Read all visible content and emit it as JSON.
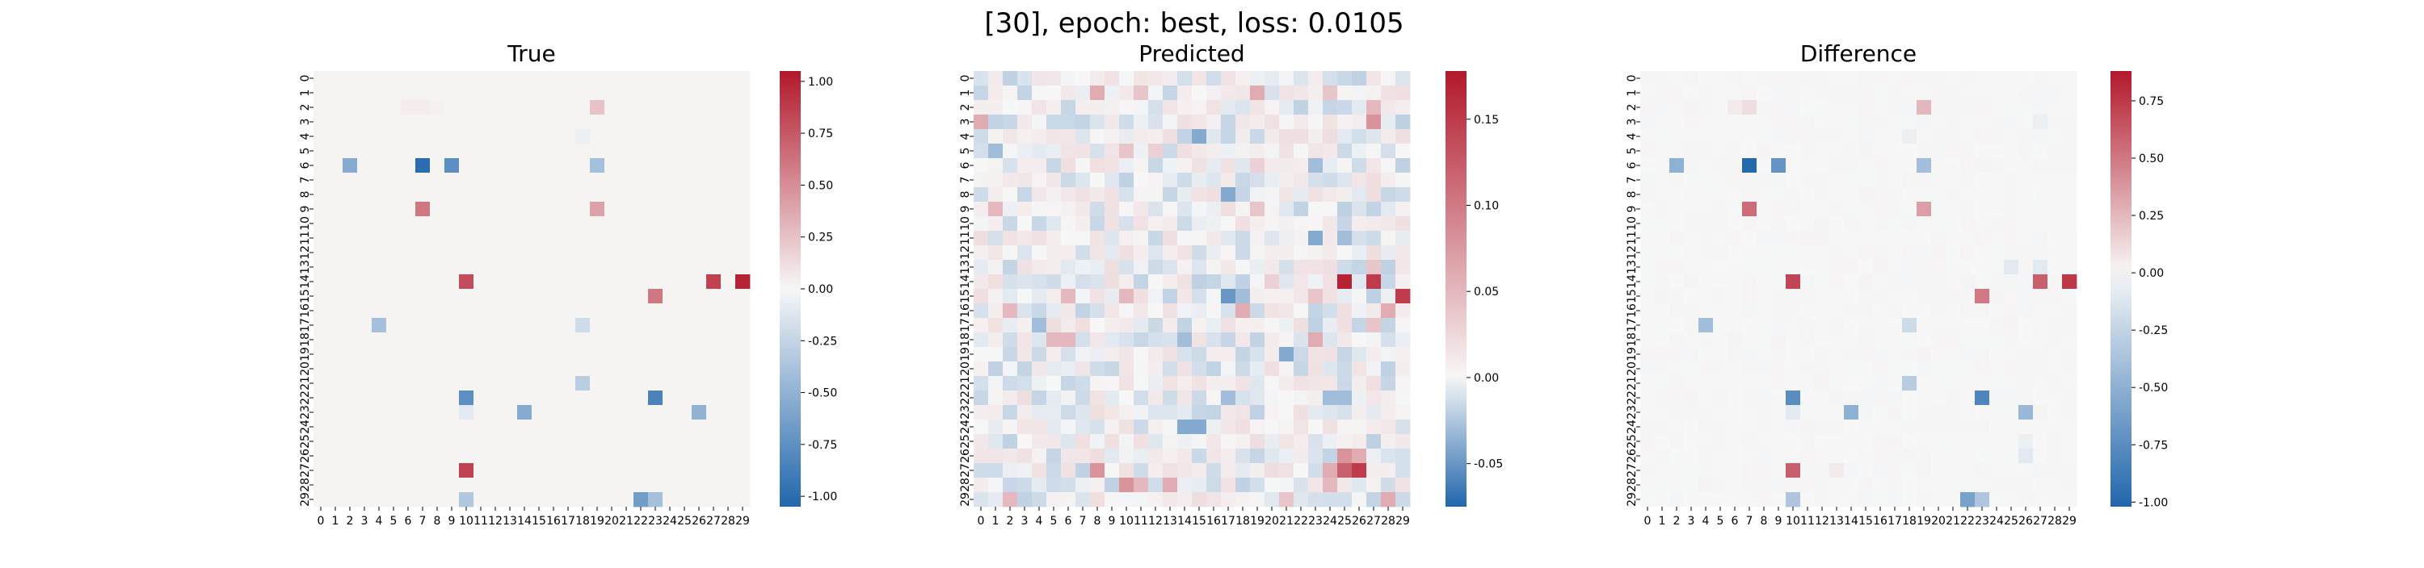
{
  "figure": {
    "suptitle": "[30], epoch: best, loss: 0.0105"
  },
  "colors": {
    "cmap": [
      "#2166ac",
      "#f7f7f7",
      "#b2182b"
    ],
    "background": "#ffffff"
  },
  "chart_data": [
    {
      "type": "heatmap",
      "title": "True",
      "rows": 30,
      "cols": 30,
      "x_tick_labels": [
        "0",
        "1",
        "2",
        "3",
        "4",
        "5",
        "6",
        "7",
        "8",
        "9",
        "10",
        "11",
        "12",
        "13",
        "14",
        "15",
        "16",
        "17",
        "18",
        "19",
        "20",
        "21",
        "22",
        "23",
        "24",
        "25",
        "26",
        "27",
        "28",
        "29"
      ],
      "y_tick_labels": [
        "0",
        "1",
        "2",
        "3",
        "4",
        "5",
        "6",
        "7",
        "8",
        "9",
        "10",
        "11",
        "12",
        "13",
        "14",
        "15",
        "16",
        "17",
        "18",
        "19",
        "20",
        "21",
        "22",
        "23",
        "24",
        "25",
        "26",
        "27",
        "28",
        "29"
      ],
      "vmin": -1.05,
      "vmax": 1.05,
      "colorbar_ticks": [
        "-1.00",
        "-0.75",
        "-0.50",
        "-0.25",
        "0.00",
        "0.25",
        "0.50",
        "0.75",
        "1.00"
      ],
      "colorbar_tick_values": [
        -1.0,
        -0.75,
        -0.5,
        -0.25,
        0.0,
        0.25,
        0.5,
        0.75,
        1.0
      ],
      "background_value": 0.02,
      "cells": [
        [
          2,
          6,
          0.05
        ],
        [
          2,
          7,
          0.05
        ],
        [
          2,
          8,
          0.03
        ],
        [
          2,
          19,
          0.25
        ],
        [
          4,
          18,
          -0.05
        ],
        [
          6,
          2,
          -0.55
        ],
        [
          6,
          7,
          -1.0
        ],
        [
          6,
          9,
          -0.75
        ],
        [
          6,
          19,
          -0.4
        ],
        [
          9,
          7,
          0.6
        ],
        [
          9,
          19,
          0.4
        ],
        [
          14,
          10,
          0.8
        ],
        [
          14,
          27,
          0.85
        ],
        [
          14,
          29,
          1.0
        ],
        [
          15,
          23,
          0.6
        ],
        [
          17,
          4,
          -0.4
        ],
        [
          17,
          18,
          -0.2
        ],
        [
          21,
          18,
          -0.3
        ],
        [
          22,
          10,
          -0.75
        ],
        [
          22,
          23,
          -0.85
        ],
        [
          23,
          10,
          -0.1
        ],
        [
          23,
          14,
          -0.55
        ],
        [
          23,
          26,
          -0.5
        ],
        [
          27,
          10,
          0.85
        ],
        [
          29,
          10,
          -0.35
        ],
        [
          29,
          22,
          -0.65
        ],
        [
          29,
          23,
          -0.4
        ]
      ]
    },
    {
      "type": "heatmap",
      "title": "Predicted",
      "rows": 30,
      "cols": 30,
      "x_tick_labels": [
        "0",
        "1",
        "2",
        "3",
        "4",
        "5",
        "6",
        "7",
        "8",
        "9",
        "10",
        "11",
        "12",
        "13",
        "14",
        "15",
        "16",
        "17",
        "18",
        "19",
        "20",
        "21",
        "22",
        "23",
        "24",
        "25",
        "26",
        "27",
        "28",
        "29"
      ],
      "y_tick_labels": [
        "0",
        "1",
        "2",
        "3",
        "4",
        "5",
        "6",
        "7",
        "8",
        "9",
        "10",
        "11",
        "12",
        "13",
        "14",
        "15",
        "16",
        "17",
        "18",
        "19",
        "20",
        "21",
        "22",
        "23",
        "24",
        "25",
        "26",
        "27",
        "28",
        "29"
      ],
      "vmin": -0.075,
      "vmax": 0.178,
      "colorbar_ticks": [
        "-0.05",
        "0.00",
        "0.05",
        "0.10",
        "0.15"
      ],
      "colorbar_tick_values": [
        -0.05,
        0.0,
        0.05,
        0.1,
        0.15
      ],
      "background_noise": 0.02,
      "cells": [
        [
          1,
          8,
          0.06
        ],
        [
          1,
          11,
          0.04
        ],
        [
          1,
          19,
          0.06
        ],
        [
          1,
          24,
          0.04
        ],
        [
          2,
          27,
          0.05
        ],
        [
          3,
          0,
          0.06
        ],
        [
          3,
          27,
          0.08
        ],
        [
          3,
          29,
          -0.02
        ],
        [
          4,
          15,
          -0.04
        ],
        [
          5,
          1,
          -0.03
        ],
        [
          5,
          10,
          0.04
        ],
        [
          5,
          12,
          0.03
        ],
        [
          6,
          19,
          0.03
        ],
        [
          6,
          23,
          -0.03
        ],
        [
          8,
          17,
          -0.04
        ],
        [
          9,
          1,
          0.05
        ],
        [
          9,
          19,
          0.04
        ],
        [
          11,
          23,
          -0.04
        ],
        [
          11,
          25,
          -0.03
        ],
        [
          13,
          27,
          0.04
        ],
        [
          14,
          25,
          0.17
        ],
        [
          14,
          27,
          0.15
        ],
        [
          14,
          20,
          0.03
        ],
        [
          15,
          6,
          0.05
        ],
        [
          15,
          10,
          0.05
        ],
        [
          15,
          17,
          -0.05
        ],
        [
          15,
          18,
          -0.03
        ],
        [
          15,
          23,
          0.04
        ],
        [
          15,
          27,
          -0.02
        ],
        [
          15,
          29,
          0.15
        ],
        [
          16,
          2,
          0.05
        ],
        [
          16,
          18,
          0.06
        ],
        [
          16,
          28,
          0.06
        ],
        [
          17,
          4,
          -0.03
        ],
        [
          17,
          27,
          0.04
        ],
        [
          18,
          5,
          0.05
        ],
        [
          18,
          6,
          0.05
        ],
        [
          18,
          14,
          -0.03
        ],
        [
          18,
          23,
          0.06
        ],
        [
          19,
          21,
          -0.04
        ],
        [
          22,
          17,
          -0.03
        ],
        [
          22,
          24,
          -0.03
        ],
        [
          22,
          25,
          -0.03
        ],
        [
          24,
          14,
          -0.04
        ],
        [
          24,
          15,
          -0.04
        ],
        [
          26,
          25,
          0.08
        ],
        [
          26,
          26,
          0.06
        ],
        [
          27,
          8,
          0.08
        ],
        [
          27,
          24,
          0.06
        ],
        [
          27,
          25,
          0.12
        ],
        [
          27,
          26,
          0.15
        ],
        [
          28,
          10,
          0.08
        ],
        [
          28,
          11,
          0.05
        ],
        [
          28,
          13,
          0.06
        ],
        [
          28,
          24,
          0.05
        ],
        [
          29,
          2,
          0.05
        ],
        [
          29,
          21,
          0.04
        ],
        [
          29,
          28,
          0.06
        ]
      ]
    },
    {
      "type": "heatmap",
      "title": "Difference",
      "rows": 30,
      "cols": 30,
      "x_tick_labels": [
        "0",
        "1",
        "2",
        "3",
        "4",
        "5",
        "6",
        "7",
        "8",
        "9",
        "10",
        "11",
        "12",
        "13",
        "14",
        "15",
        "16",
        "17",
        "18",
        "19",
        "20",
        "21",
        "22",
        "23",
        "24",
        "25",
        "26",
        "27",
        "28",
        "29"
      ],
      "y_tick_labels": [
        "0",
        "1",
        "2",
        "3",
        "4",
        "5",
        "6",
        "7",
        "8",
        "9",
        "10",
        "11",
        "12",
        "13",
        "14",
        "15",
        "16",
        "17",
        "18",
        "19",
        "20",
        "21",
        "22",
        "23",
        "24",
        "25",
        "26",
        "27",
        "28",
        "29"
      ],
      "vmin": -1.02,
      "vmax": 0.88,
      "colorbar_ticks": [
        "-1.00",
        "-0.75",
        "-0.50",
        "-0.25",
        "0.00",
        "0.25",
        "0.50",
        "0.75"
      ],
      "colorbar_tick_values": [
        -1.0,
        -0.75,
        -0.5,
        -0.25,
        0.0,
        0.25,
        0.5,
        0.75
      ],
      "background_noise": 0.015,
      "cells": [
        [
          2,
          6,
          0.05
        ],
        [
          2,
          7,
          0.1
        ],
        [
          2,
          19,
          0.25
        ],
        [
          3,
          27,
          -0.05
        ],
        [
          4,
          18,
          -0.05
        ],
        [
          6,
          2,
          -0.5
        ],
        [
          6,
          7,
          -1.0
        ],
        [
          6,
          9,
          -0.7
        ],
        [
          6,
          19,
          -0.4
        ],
        [
          9,
          7,
          0.55
        ],
        [
          9,
          19,
          0.35
        ],
        [
          13,
          25,
          -0.1
        ],
        [
          13,
          27,
          -0.1
        ],
        [
          14,
          10,
          0.7
        ],
        [
          14,
          27,
          0.6
        ],
        [
          14,
          29,
          0.75
        ],
        [
          15,
          23,
          0.5
        ],
        [
          17,
          4,
          -0.4
        ],
        [
          17,
          18,
          -0.2
        ],
        [
          21,
          18,
          -0.3
        ],
        [
          22,
          10,
          -0.75
        ],
        [
          22,
          23,
          -0.8
        ],
        [
          23,
          10,
          -0.1
        ],
        [
          23,
          14,
          -0.5
        ],
        [
          23,
          26,
          -0.45
        ],
        [
          25,
          26,
          -0.05
        ],
        [
          26,
          26,
          -0.1
        ],
        [
          27,
          10,
          0.6
        ],
        [
          27,
          13,
          0.05
        ],
        [
          29,
          10,
          -0.35
        ],
        [
          29,
          22,
          -0.6
        ],
        [
          29,
          23,
          -0.35
        ]
      ]
    }
  ]
}
